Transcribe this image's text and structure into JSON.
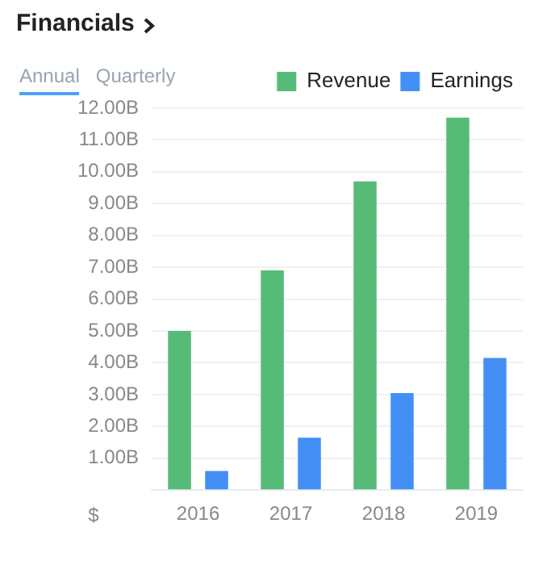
{
  "chart_data": {
    "type": "bar",
    "title": "Financials",
    "ylabel": "$",
    "annotations": [
      "Annual",
      "Quarterly"
    ],
    "categories": [
      "2016",
      "2017",
      "2018",
      "2019"
    ],
    "series": [
      {
        "name": "Revenue",
        "color": "#57bb78",
        "values": [
          5.0,
          6.9,
          9.7,
          11.7
        ]
      },
      {
        "name": "Earnings",
        "color": "#448ff5",
        "values": [
          0.6,
          1.65,
          3.05,
          4.15
        ]
      }
    ],
    "ylim": [
      0,
      12
    ],
    "yticks": [
      {
        "value": 0,
        "label": null
      },
      {
        "value": 1,
        "label": "1.00B"
      },
      {
        "value": 2,
        "label": "2.00B"
      },
      {
        "value": 3,
        "label": "3.00B"
      },
      {
        "value": 4,
        "label": "4.00B"
      },
      {
        "value": 5,
        "label": "5.00B"
      },
      {
        "value": 6,
        "label": "6.00B"
      },
      {
        "value": 7,
        "label": "7.00B"
      },
      {
        "value": 8,
        "label": "8.00B"
      },
      {
        "value": 9,
        "label": "9.00B"
      },
      {
        "value": 10,
        "label": "10.00B"
      },
      {
        "value": 11,
        "label": "11.00B"
      },
      {
        "value": 12,
        "label": "12.00B"
      }
    ],
    "grid": "y",
    "legend": "top right"
  }
}
